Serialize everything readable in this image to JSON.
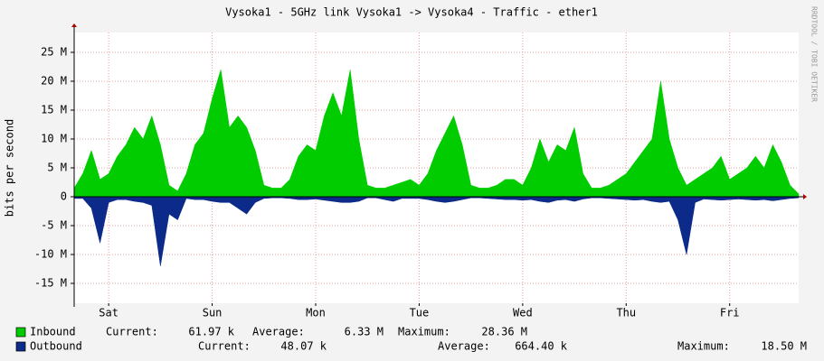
{
  "chart_data": {
    "type": "area",
    "title": "Vysoka1 - 5GHz link Vysoka1 -> Vysoka4 - Traffic - ether1",
    "y_label": "bits per second",
    "watermark": "RRDTOOL / TOBI OETIKER",
    "x": [
      0,
      2,
      4,
      6,
      8,
      10,
      12,
      14,
      16,
      18,
      20,
      22,
      24,
      26,
      28,
      30,
      32,
      34,
      36,
      38,
      40,
      42,
      44,
      46,
      48,
      50,
      52,
      54,
      56,
      58,
      60,
      62,
      64,
      66,
      68,
      70,
      72,
      74,
      76,
      78,
      80,
      82,
      84,
      86,
      88,
      90,
      92,
      94,
      96,
      98,
      100,
      102,
      104,
      106,
      108,
      110,
      112,
      114,
      116,
      118,
      120,
      122,
      124,
      126,
      128,
      130,
      132,
      134,
      136,
      138,
      140,
      142,
      144,
      146,
      148,
      150,
      152,
      154,
      156,
      158,
      160,
      162,
      164,
      166,
      168
    ],
    "xlim": [
      0,
      168
    ],
    "xticks": [
      {
        "value": 8,
        "label": "Sat"
      },
      {
        "value": 32,
        "label": "Sun"
      },
      {
        "value": 56,
        "label": "Mon"
      },
      {
        "value": 80,
        "label": "Tue"
      },
      {
        "value": 104,
        "label": "Wed"
      },
      {
        "value": 128,
        "label": "Thu"
      },
      {
        "value": 152,
        "label": "Fri"
      }
    ],
    "ylim": [
      -18440000,
      28440000
    ],
    "yticks": [
      {
        "value": -15000000,
        "label": "-15 M"
      },
      {
        "value": -10000000,
        "label": "-10 M"
      },
      {
        "value": -5000000,
        "label": "-5 M"
      },
      0,
      {
        "value": 5000000,
        "label": "5 M"
      },
      {
        "value": 10000000,
        "label": "10 M"
      },
      {
        "value": 15000000,
        "label": "15 M"
      },
      {
        "value": 20000000,
        "label": "20 M"
      },
      {
        "value": 25000000,
        "label": "25 M"
      }
    ],
    "grid": true,
    "series": [
      {
        "name": "Inbound",
        "color": "#00cc00",
        "values": [
          1500000,
          4000000,
          8000000,
          3000000,
          4000000,
          7000000,
          9000000,
          12000000,
          10000000,
          14000000,
          9000000,
          2000000,
          1000000,
          4000000,
          9000000,
          11000000,
          17000000,
          22000000,
          12000000,
          14000000,
          12000000,
          8000000,
          2000000,
          1500000,
          1500000,
          3000000,
          7000000,
          9000000,
          8000000,
          14000000,
          18000000,
          14000000,
          22000000,
          10000000,
          2000000,
          1500000,
          1500000,
          2000000,
          2500000,
          3000000,
          2000000,
          4000000,
          8000000,
          11000000,
          14000000,
          9000000,
          2000000,
          1500000,
          1500000,
          2000000,
          3000000,
          3000000,
          2000000,
          5000000,
          10000000,
          6000000,
          9000000,
          8000000,
          12000000,
          4000000,
          1500000,
          1500000,
          2000000,
          3000000,
          4000000,
          6000000,
          8000000,
          10000000,
          20000000,
          10000000,
          5000000,
          2000000,
          3000000,
          4000000,
          5000000,
          7000000,
          3000000,
          4000000,
          5000000,
          7000000,
          5000000,
          9000000,
          6000000,
          2000000,
          500000
        ],
        "stats": [
          {
            "label": "Current:",
            "value": "61.97 k"
          },
          {
            "label": "Average:",
            "value": "6.33 M"
          },
          {
            "label": "Maximum:",
            "value": "28.36 M"
          }
        ]
      },
      {
        "name": "Outbound",
        "color": "#0b2a8a",
        "values": [
          -300000,
          -300000,
          -2000000,
          -8000000,
          -1000000,
          -500000,
          -500000,
          -800000,
          -1000000,
          -1500000,
          -12000000,
          -3000000,
          -4000000,
          -300000,
          -500000,
          -500000,
          -800000,
          -1000000,
          -1000000,
          -2000000,
          -3000000,
          -1000000,
          -300000,
          -200000,
          -200000,
          -300000,
          -500000,
          -500000,
          -400000,
          -600000,
          -800000,
          -1000000,
          -1000000,
          -800000,
          -200000,
          -200000,
          -500000,
          -800000,
          -300000,
          -300000,
          -300000,
          -500000,
          -800000,
          -1000000,
          -800000,
          -500000,
          -200000,
          -200000,
          -300000,
          -400000,
          -500000,
          -500000,
          -600000,
          -500000,
          -800000,
          -1000000,
          -600000,
          -500000,
          -800000,
          -400000,
          -200000,
          -200000,
          -300000,
          -400000,
          -500000,
          -600000,
          -500000,
          -800000,
          -1000000,
          -800000,
          -4000000,
          -10000000,
          -1000000,
          -400000,
          -500000,
          -600000,
          -500000,
          -400000,
          -500000,
          -600000,
          -500000,
          -700000,
          -500000,
          -300000,
          -200000
        ],
        "stats": [
          {
            "label": "Current:",
            "value": "48.07 k"
          },
          {
            "label": "Average:",
            "value": "664.40 k"
          },
          {
            "label": "Maximum:",
            "value": "18.50 M"
          }
        ]
      }
    ]
  }
}
